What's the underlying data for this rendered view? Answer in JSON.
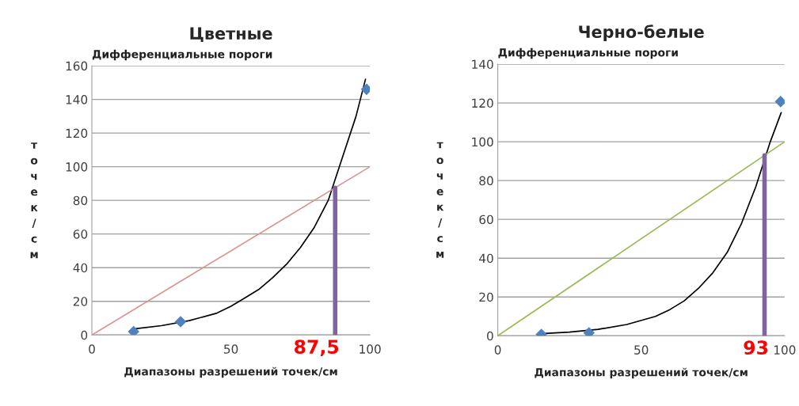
{
  "chart_data": [
    {
      "type": "scatter",
      "title": "Цветные",
      "subtitle": "Дифференциальные пороги",
      "xlabel": "Диапазоны разрешений точек/см",
      "ylabel": "точек/см",
      "xlim": [
        0,
        100
      ],
      "ylim": [
        0,
        160
      ],
      "xticks": [
        0,
        50,
        100
      ],
      "yticks": [
        0,
        20,
        40,
        60,
        80,
        100,
        120,
        140,
        160
      ],
      "grid": "y",
      "series": [
        {
          "type": "line",
          "color": "#000000",
          "x": [
            15,
            25,
            35,
            45,
            50,
            55,
            60,
            65,
            70,
            75,
            80,
            85,
            90,
            95,
            98.4
          ],
          "values": [
            3.6,
            5.5,
            8.5,
            13,
            17,
            22,
            27,
            34,
            42,
            52,
            64,
            80,
            105,
            130,
            152
          ]
        },
        {
          "type": "line",
          "color": "#d99694",
          "x": [
            0,
            100
          ],
          "values": [
            0,
            100
          ]
        },
        {
          "type": "line",
          "color": "#8064a2",
          "x": [
            87.5,
            87.5
          ],
          "values": [
            0,
            87.5
          ]
        },
        {
          "color": "#4f81bd",
          "marker": "diamond",
          "x": [
            15,
            31.9,
            98.8
          ],
          "values": [
            2,
            7.9,
            146
          ]
        }
      ],
      "annotations": [
        {
          "text": "87,5",
          "x": 87.5,
          "y": 0
        }
      ]
    },
    {
      "type": "scatter",
      "title": "Черно-белые",
      "subtitle": "Дифференциальные пороги",
      "xlabel": "Диапазоны разрешений точек/см",
      "ylabel": "точек/см",
      "xlim": [
        0,
        100
      ],
      "ylim": [
        0,
        140
      ],
      "xticks": [
        0,
        50,
        100
      ],
      "yticks": [
        0,
        20,
        40,
        60,
        80,
        100,
        120,
        140
      ],
      "grid": "y",
      "series": [
        {
          "type": "line",
          "color": "#000000",
          "x": [
            15,
            25,
            35,
            45,
            55,
            60,
            65,
            70,
            75,
            80,
            85,
            90,
            95,
            98.8
          ],
          "values": [
            1.1,
            1.9,
            3.3,
            5.8,
            10,
            13.5,
            18,
            24.5,
            32.5,
            43,
            58,
            77,
            100,
            115
          ]
        },
        {
          "type": "line",
          "color": "#9bbb59",
          "x": [
            0,
            100
          ],
          "values": [
            0,
            100
          ]
        },
        {
          "type": "line",
          "color": "#8064a2",
          "x": [
            93,
            93
          ],
          "values": [
            0,
            93
          ]
        },
        {
          "color": "#4f81bd",
          "marker": "diamond",
          "x": [
            15.2,
            31.8,
            98.6
          ],
          "values": [
            0.7,
            1.5,
            120.7
          ]
        }
      ],
      "annotations": [
        {
          "text": "93",
          "x": 93,
          "y": 0
        }
      ]
    }
  ]
}
